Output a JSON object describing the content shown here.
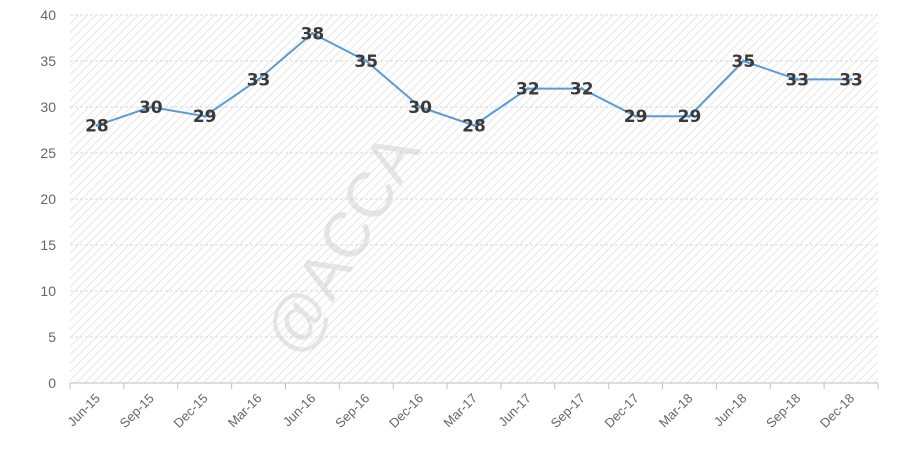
{
  "watermark": "@ACCA",
  "chart_data": {
    "type": "line",
    "title": "",
    "xlabel": "",
    "ylabel": "",
    "categories": [
      "Jun-15",
      "Sep-15",
      "Dec-15",
      "Mar-16",
      "Jun-16",
      "Sep-16",
      "Dec-16",
      "Mar-17",
      "Jun-17",
      "Sep-17",
      "Dec-17",
      "Mar-18",
      "Jun-18",
      "Sep-18",
      "Dec-18"
    ],
    "series": [
      {
        "values": [
          28,
          30,
          29,
          33,
          38,
          35,
          30,
          28,
          32,
          32,
          29,
          29,
          35,
          33,
          33
        ],
        "color": "#5b9bd5"
      }
    ],
    "ylim": [
      0,
      40
    ],
    "yticks": [
      0,
      5,
      10,
      15,
      20,
      25,
      30,
      35,
      40
    ],
    "grid": true,
    "data_labels": true,
    "legend": "none"
  }
}
